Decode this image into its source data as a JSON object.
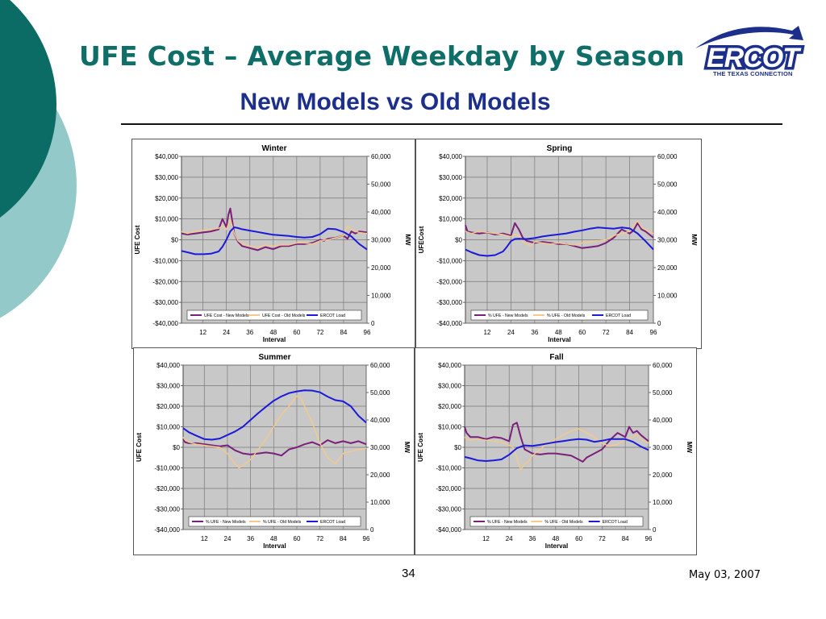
{
  "title": "UFE Cost – Average Weekday by Season",
  "subtitle": "New Models vs Old Models",
  "logo": {
    "text": "ERCOT",
    "tagline": "THE TEXAS CONNECTION"
  },
  "footer": {
    "page_number": "34",
    "date": "May 03, 2007"
  },
  "colors": {
    "title": "#0f6e68",
    "subtitle": "#1c2f8a",
    "new_models": "#7a1f7a",
    "old_models": "#f5c98a",
    "ercot_load": "#1a1adb",
    "plot_bg": "#c8c8c8",
    "deco_dark": "#0b6b65",
    "deco_light": "#93c9c9"
  },
  "chart_data": [
    {
      "type": "line",
      "title": "Winter",
      "xlabel": "Interval",
      "ylabel": "UFE Cost",
      "y2label": "MW",
      "xlim": [
        1,
        96
      ],
      "x_ticks": [
        12,
        24,
        36,
        48,
        60,
        72,
        84,
        96
      ],
      "ylim": [
        -40000,
        40000
      ],
      "y_ticks": [
        "-$40,000",
        "-$30,000",
        "-$20,000",
        "-$10,000",
        "$0",
        "$10,000",
        "$20,000",
        "$30,000",
        "$40,000"
      ],
      "y2lim": [
        0,
        60000
      ],
      "y2_ticks": [
        "0",
        "10,000",
        "20,000",
        "30,000",
        "40,000",
        "50,000",
        "60,000"
      ],
      "grid": true,
      "legend_position": "bottom",
      "series": [
        {
          "name": "UFE Cost - New Models",
          "axis": "left",
          "x": [
            1,
            4,
            8,
            12,
            16,
            20,
            22,
            24,
            25,
            26,
            27,
            28,
            30,
            32,
            36,
            40,
            44,
            48,
            52,
            56,
            60,
            64,
            68,
            72,
            74,
            76,
            80,
            84,
            86,
            88,
            90,
            92,
            96
          ],
          "y": [
            3000,
            2500,
            3000,
            3500,
            4000,
            5000,
            10000,
            6000,
            12000,
            15000,
            9000,
            3000,
            -1000,
            -3000,
            -4000,
            -5000,
            -3500,
            -4500,
            -3000,
            -3000,
            -2000,
            -2000,
            -1500,
            0,
            -500,
            500,
            1000,
            2000,
            500,
            4000,
            3000,
            4000,
            3500
          ]
        },
        {
          "name": "UFE Cost - Old Models",
          "axis": "left",
          "x": [
            1,
            4,
            8,
            12,
            16,
            20,
            22,
            24,
            26,
            28,
            30,
            32,
            36,
            40,
            44,
            48,
            52,
            56,
            60,
            64,
            68,
            72,
            76,
            80,
            84,
            86,
            88,
            90,
            92,
            96
          ],
          "y": [
            4000,
            3000,
            4000,
            4500,
            5000,
            5500,
            6500,
            5000,
            10000,
            3000,
            -500,
            -2000,
            -3000,
            -3500,
            -2500,
            -3000,
            -2500,
            -2500,
            -1500,
            -1500,
            -2000,
            -500,
            0,
            1000,
            2000,
            6500,
            5000,
            4000,
            3500,
            3000
          ]
        },
        {
          "name": "ERCOT Load",
          "axis": "right",
          "x": [
            1,
            4,
            8,
            12,
            16,
            20,
            22,
            24,
            26,
            28,
            30,
            32,
            36,
            40,
            44,
            48,
            52,
            56,
            60,
            64,
            68,
            72,
            76,
            80,
            84,
            88,
            92,
            96
          ],
          "y": [
            26000,
            25500,
            24800,
            24800,
            25000,
            25800,
            27500,
            30000,
            33000,
            34500,
            34200,
            33800,
            33300,
            32800,
            32300,
            31800,
            31600,
            31400,
            31000,
            30800,
            31000,
            32000,
            34000,
            33800,
            32800,
            31200,
            28500,
            26500
          ]
        }
      ]
    },
    {
      "type": "line",
      "title": "Spring",
      "xlabel": "Interval",
      "ylabel": "UFECost",
      "y2label": "MW",
      "xlim": [
        1,
        96
      ],
      "x_ticks": [
        12,
        24,
        36,
        48,
        60,
        72,
        84,
        96
      ],
      "ylim": [
        -40000,
        40000
      ],
      "y_ticks": [
        "-$40,000",
        "-$30,000",
        "-$20,000",
        "-$10,000",
        "$0",
        "$10,000",
        "$20,000",
        "$30,000",
        "$40,000"
      ],
      "y2lim": [
        0,
        60000
      ],
      "y2_ticks": [
        "0",
        "10,000",
        "20,000",
        "30,000",
        "40,000",
        "50,000",
        "60,000"
      ],
      "grid": true,
      "legend_position": "bottom",
      "series": [
        {
          "name": "% UFE - New Models",
          "axis": "left",
          "x": [
            1,
            2,
            4,
            8,
            12,
            16,
            20,
            24,
            26,
            28,
            30,
            32,
            36,
            40,
            44,
            48,
            52,
            56,
            60,
            64,
            68,
            72,
            76,
            80,
            84,
            86,
            88,
            90,
            92,
            96
          ],
          "y": [
            7000,
            4000,
            3500,
            3000,
            3500,
            2500,
            3000,
            2000,
            8000,
            5000,
            1000,
            -500,
            -1500,
            -1000,
            -1500,
            -2000,
            -2000,
            -3000,
            -4000,
            -3500,
            -3000,
            -1500,
            1000,
            5000,
            3000,
            4500,
            8000,
            5000,
            4000,
            1000
          ]
        },
        {
          "name": "% UFE - Old Models",
          "axis": "left",
          "x": [
            1,
            4,
            8,
            12,
            16,
            20,
            24,
            26,
            28,
            30,
            32,
            34,
            36,
            40,
            44,
            48,
            52,
            56,
            60,
            64,
            68,
            72,
            76,
            80,
            84,
            86,
            88,
            90,
            92,
            96
          ],
          "y": [
            4000,
            3000,
            4000,
            3500,
            3000,
            2500,
            1500,
            2500,
            2000,
            -1000,
            -2000,
            -3000,
            -1000,
            -1500,
            -2000,
            -1500,
            -2000,
            -2500,
            -1500,
            -1000,
            -500,
            0,
            2000,
            3000,
            4000,
            7000,
            9000,
            6000,
            5000,
            3000
          ]
        },
        {
          "name": "ERCOT Load",
          "axis": "right",
          "x": [
            1,
            4,
            8,
            12,
            16,
            20,
            22,
            24,
            26,
            28,
            30,
            32,
            36,
            40,
            44,
            48,
            52,
            56,
            60,
            64,
            68,
            72,
            76,
            80,
            84,
            88,
            92,
            96
          ],
          "y": [
            26500,
            25500,
            24500,
            24200,
            24500,
            25800,
            27500,
            29500,
            30300,
            30400,
            30300,
            30300,
            30600,
            31200,
            31600,
            31900,
            32300,
            32900,
            33400,
            34000,
            34400,
            34200,
            34000,
            34400,
            34100,
            32300,
            29500,
            26500
          ]
        }
      ]
    },
    {
      "type": "line",
      "title": "Summer",
      "xlabel": "Interval",
      "ylabel": "UFE Cost",
      "y2label": "MW",
      "xlim": [
        1,
        96
      ],
      "x_ticks": [
        12,
        24,
        36,
        48,
        60,
        72,
        84,
        96
      ],
      "ylim": [
        -40000,
        40000
      ],
      "y_ticks": [
        "-$40,000",
        "-$30,000",
        "-$20,000",
        "-$10,000",
        "$0",
        "$10,000",
        "$20,000",
        "$30,000",
        "$40,000"
      ],
      "y2lim": [
        0,
        60000
      ],
      "y2_ticks": [
        "0",
        "10,000",
        "20,000",
        "30,000",
        "40,000",
        "50,000",
        "60,000"
      ],
      "grid": true,
      "legend_position": "bottom",
      "series": [
        {
          "name": "% UFE - New Models",
          "axis": "left",
          "x": [
            1,
            2,
            4,
            8,
            12,
            16,
            20,
            24,
            28,
            32,
            36,
            40,
            44,
            48,
            52,
            56,
            60,
            64,
            68,
            72,
            76,
            80,
            84,
            88,
            92,
            96
          ],
          "y": [
            4000,
            2500,
            2000,
            2000,
            1500,
            1000,
            500,
            1000,
            -1500,
            -3000,
            -3500,
            -3000,
            -2500,
            -3000,
            -4000,
            -1000,
            0,
            1500,
            2500,
            1000,
            3500,
            2000,
            3000,
            2000,
            3000,
            1500
          ]
        },
        {
          "name": "% UFE - Old Models",
          "axis": "left",
          "x": [
            1,
            2,
            4,
            8,
            12,
            16,
            20,
            24,
            28,
            30,
            32,
            36,
            40,
            44,
            48,
            52,
            56,
            60,
            62,
            64,
            66,
            68,
            72,
            76,
            80,
            84,
            88,
            92,
            96
          ],
          "y": [
            5000,
            3500,
            2500,
            1500,
            1000,
            500,
            0,
            -3000,
            -8000,
            -10000,
            -9000,
            -6000,
            -1000,
            4000,
            10000,
            16000,
            20000,
            25000,
            24000,
            20000,
            16000,
            12000,
            2000,
            -5000,
            -8000,
            -3000,
            -2000,
            -1000,
            -500
          ]
        },
        {
          "name": "ERCOT Load",
          "axis": "right",
          "x": [
            1,
            4,
            8,
            12,
            16,
            20,
            24,
            28,
            32,
            36,
            40,
            44,
            48,
            52,
            56,
            60,
            64,
            68,
            72,
            76,
            80,
            84,
            88,
            92,
            96
          ],
          "y": [
            37000,
            35500,
            34200,
            33000,
            32800,
            33200,
            34500,
            35800,
            37500,
            40000,
            42500,
            44800,
            47000,
            48600,
            49800,
            50400,
            50800,
            50700,
            50100,
            48500,
            47200,
            46800,
            45000,
            41500,
            39000
          ]
        }
      ]
    },
    {
      "type": "line",
      "title": "Fall",
      "xlabel": "Interval",
      "ylabel": "UFE Cost",
      "y2label": "MW",
      "xlim": [
        1,
        96
      ],
      "x_ticks": [
        12,
        24,
        36,
        48,
        60,
        72,
        84,
        96
      ],
      "ylim": [
        -40000,
        40000
      ],
      "y_ticks": [
        "-$40,000",
        "-$30,000",
        "-$20,000",
        "-$10,000",
        "$0",
        "$10,000",
        "$20,000",
        "$30,000",
        "$40,000"
      ],
      "y2lim": [
        0,
        60000
      ],
      "y2_ticks": [
        "0",
        "10,000",
        "20,000",
        "30,000",
        "40,000",
        "50,000",
        "60,000"
      ],
      "grid": true,
      "legend_position": "bottom",
      "series": [
        {
          "name": "% UFE - New Models",
          "axis": "left",
          "x": [
            1,
            2,
            4,
            8,
            12,
            16,
            20,
            24,
            26,
            28,
            30,
            32,
            36,
            40,
            44,
            48,
            52,
            56,
            60,
            62,
            64,
            68,
            72,
            76,
            80,
            84,
            86,
            88,
            90,
            92,
            96
          ],
          "y": [
            10000,
            7000,
            5000,
            5000,
            4000,
            5000,
            4500,
            3000,
            11000,
            12000,
            5000,
            -1000,
            -3000,
            -3500,
            -3000,
            -3000,
            -3500,
            -4000,
            -6000,
            -7000,
            -5000,
            -3000,
            -1000,
            3500,
            7000,
            5000,
            10000,
            7000,
            8000,
            6000,
            3000
          ]
        },
        {
          "name": "% UFE - Old Models",
          "axis": "left",
          "x": [
            1,
            2,
            4,
            8,
            12,
            16,
            20,
            24,
            26,
            28,
            30,
            32,
            34,
            36,
            40,
            44,
            48,
            52,
            56,
            60,
            64,
            68,
            72,
            76,
            80,
            84,
            88,
            90,
            92,
            96
          ],
          "y": [
            5000,
            4000,
            3500,
            4000,
            3500,
            3000,
            2500,
            1000,
            0,
            -5000,
            -11000,
            -8000,
            -7000,
            -4000,
            -1000,
            2000,
            4000,
            6000,
            8000,
            9000,
            7000,
            5000,
            2000,
            500,
            1500,
            4000,
            5000,
            6000,
            4000,
            2000
          ]
        },
        {
          "name": "ERCOT Load",
          "axis": "right",
          "x": [
            1,
            4,
            8,
            12,
            16,
            20,
            24,
            28,
            32,
            36,
            40,
            44,
            48,
            52,
            56,
            60,
            64,
            68,
            72,
            76,
            80,
            84,
            88,
            92,
            96
          ],
          "y": [
            26500,
            26000,
            25200,
            25000,
            25200,
            25600,
            27300,
            29700,
            30700,
            30500,
            30900,
            31400,
            31900,
            32300,
            32700,
            33000,
            32800,
            32000,
            32400,
            33000,
            33000,
            33000,
            32000,
            30300,
            29000
          ]
        }
      ]
    }
  ]
}
